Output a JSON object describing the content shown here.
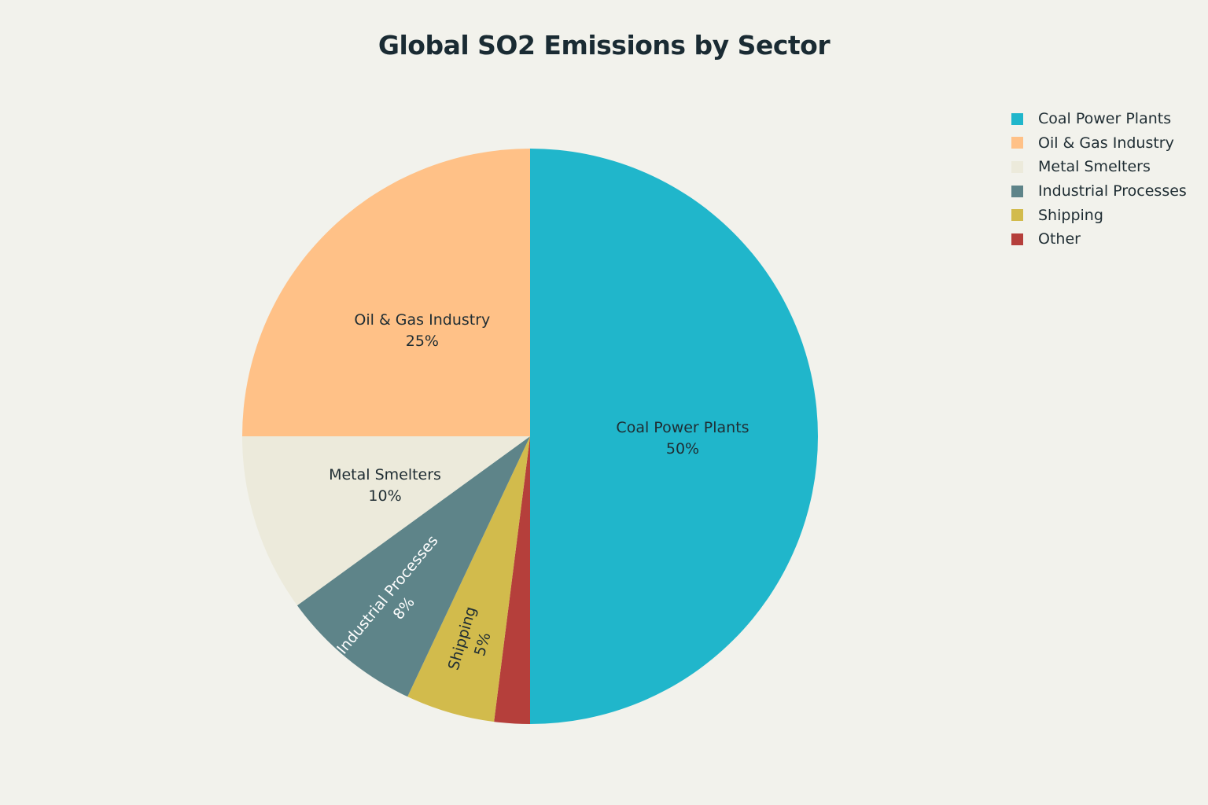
{
  "chart_data": {
    "type": "pie",
    "title": "Global SO2 Emissions by Sector",
    "start_angle_deg": 90,
    "direction": "clockwise",
    "legend_position": "top-right",
    "slices": [
      {
        "label": "Coal Power Plants",
        "value": 50,
        "value_label": "50%",
        "color": "#20b6cb",
        "text_color": "#1f2d33",
        "rotate_label": false
      },
      {
        "label": "Other",
        "value": 2,
        "value_label": "",
        "color": "#b53f3b",
        "text_color": "#ffffff",
        "rotate_label": false
      },
      {
        "label": "Shipping",
        "value": 5,
        "value_label": "5%",
        "color": "#d2bb4c",
        "text_color": "#1f2d33",
        "rotate_label": true
      },
      {
        "label": "Industrial Processes",
        "value": 8,
        "value_label": "8%",
        "color": "#5e8489",
        "text_color": "#ffffff",
        "rotate_label": true
      },
      {
        "label": "Metal Smelters",
        "value": 10,
        "value_label": "10%",
        "color": "#eceadb",
        "text_color": "#1f2d33",
        "rotate_label": false
      },
      {
        "label": "Oil & Gas Industry",
        "value": 25,
        "value_label": "25%",
        "color": "#ffc187",
        "text_color": "#1f2d33",
        "rotate_label": false
      }
    ],
    "legend": [
      {
        "label": "Coal Power Plants",
        "color": "#20b6cb"
      },
      {
        "label": "Oil & Gas Industry",
        "color": "#ffc187"
      },
      {
        "label": "Metal Smelters",
        "color": "#eceadb"
      },
      {
        "label": "Industrial Processes",
        "color": "#5e8489"
      },
      {
        "label": "Shipping",
        "color": "#d2bb4c"
      },
      {
        "label": "Other",
        "color": "#b53f3b"
      }
    ]
  }
}
